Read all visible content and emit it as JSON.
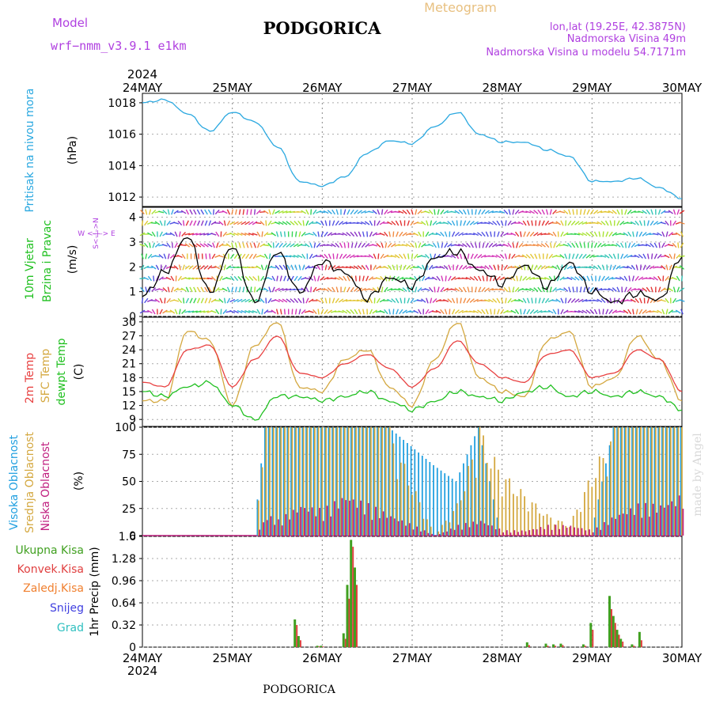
{
  "header": {
    "model_label": "Model",
    "model_name": "wrf−nmm_v3.9.1  e1km",
    "city_title": "PODGORICA",
    "meteogram_label": "Meteogram",
    "lonlat": "lon,lat (19.25E, 42.3875N)",
    "elevation": "Nadmorska Visina 49m",
    "model_elevation": "Nadmorska Visina u modelu 54.7171m",
    "year": "2024",
    "footer_city": "PODGORICA",
    "watermark": "made by Angel"
  },
  "colors": {
    "pressure": "#2aa8e0",
    "temp2m": "#e84040",
    "sfc": "#d4a840",
    "dew": "#20c020",
    "high_cloud": "#22a0e0",
    "mid_cloud": "#d4a840",
    "low_cloud": "#c02080",
    "precip_total": "#40a020",
    "precip_conv": "#e04040",
    "precip_strat": "#f08030",
    "snow": "#4040e0",
    "grad": "#30c0c0",
    "wind_axis_label": "#b040e0"
  },
  "x_axis": {
    "top_labels": [
      "24MAY",
      "25MAY",
      "26MAY",
      "27MAY",
      "28MAY",
      "29MAY",
      "30MAY"
    ],
    "bottom_labels": [
      "24MAY",
      "25MAY",
      "26MAY",
      "27MAY",
      "28MAY",
      "29MAY",
      "30MAY"
    ]
  },
  "panels": {
    "pressure": {
      "ylabel_1": "Pritisak na nivou mora",
      "unit": "(hPa)",
      "ticks": [
        "1012",
        "1014",
        "1016",
        "1018"
      ]
    },
    "wind": {
      "ylabel_1": "10m Vjetar",
      "ylabel_2": "Brzina i Pravac",
      "unit": "(m/s)",
      "compass": "W <–|–> E",
      "compass_ns": "S<–|–>N",
      "ticks": [
        "0",
        "1",
        "2",
        "3",
        "4"
      ]
    },
    "temp": {
      "ylabel_1": "2m Temp",
      "ylabel_2": "SFC Temp",
      "ylabel_3": "dewpt Temp",
      "unit": "(C)",
      "ticks": [
        "9",
        "12",
        "15",
        "18",
        "21",
        "24",
        "27",
        "30"
      ]
    },
    "cloud": {
      "ylabel_1": "Visoka Oblacnost",
      "ylabel_2": "Srednja Oblacnost",
      "ylabel_3": "Niska Oblacnost",
      "unit": "(%)",
      "ticks": [
        "0",
        "25",
        "50",
        "75",
        "100"
      ]
    },
    "precip": {
      "ylabel_1": "1hr Precip (mm)",
      "ticks": [
        "0",
        "0.32",
        "0.64",
        "0.96",
        "1.28",
        "1.6"
      ],
      "legend": [
        "Ukupna Kisa",
        "Konvek.Kisa",
        "Zaledj.Kisa",
        "Snijeg",
        "Grad"
      ]
    }
  },
  "chart_data": [
    {
      "type": "line",
      "title": "Pritisak na nivou mora",
      "ylabel": "hPa",
      "ylim": [
        1011.4,
        1018.6
      ],
      "x": [
        0,
        6,
        12,
        18,
        24,
        30,
        36,
        42,
        48,
        54,
        60,
        66,
        72,
        78,
        84,
        90,
        96,
        102,
        108,
        114,
        120,
        126,
        132,
        138,
        144
      ],
      "series": [
        {
          "name": "Pritisak na nivou mora",
          "values": [
            1018.0,
            1018.2,
            1017.3,
            1016.2,
            1017.4,
            1016.8,
            1015.2,
            1013.0,
            1012.7,
            1013.3,
            1014.8,
            1015.6,
            1015.4,
            1016.5,
            1017.4,
            1016.0,
            1015.5,
            1015.5,
            1015.0,
            1014.6,
            1013.0,
            1013.0,
            1013.2,
            1012.6,
            1011.9
          ]
        }
      ]
    },
    {
      "type": "line",
      "title": "10m Vjetar Brzina i Pravac",
      "ylabel": "m/s",
      "ylim": [
        0,
        4.4
      ],
      "x": [
        0,
        6,
        12,
        18,
        24,
        30,
        36,
        42,
        48,
        54,
        60,
        66,
        72,
        78,
        84,
        90,
        96,
        102,
        108,
        114,
        120,
        126,
        132,
        138,
        144
      ],
      "series": [
        {
          "name": "10m Vjetar",
          "values": [
            0.8,
            1.8,
            3.2,
            1.0,
            2.8,
            0.6,
            2.6,
            1.0,
            2.2,
            1.8,
            0.7,
            1.6,
            1.2,
            2.4,
            2.6,
            1.9,
            1.3,
            2.1,
            1.2,
            2.2,
            1.0,
            0.6,
            0.9,
            0.7,
            2.4
          ]
        }
      ]
    },
    {
      "type": "line",
      "title": "2m Temp / SFC Temp / dewpt Temp",
      "ylabel": "C",
      "ylim": [
        7.5,
        31
      ],
      "x": [
        0,
        6,
        12,
        18,
        24,
        30,
        36,
        42,
        48,
        54,
        60,
        66,
        72,
        78,
        84,
        90,
        96,
        102,
        108,
        114,
        120,
        126,
        132,
        138,
        144
      ],
      "series": [
        {
          "name": "2m Temp",
          "values": [
            17,
            16,
            24,
            25,
            16,
            22,
            27,
            19,
            18,
            21,
            23,
            20,
            16,
            20,
            26,
            21,
            18,
            17,
            23,
            24,
            18,
            19,
            24,
            22,
            15
          ]
        },
        {
          "name": "SFC Temp",
          "values": [
            13,
            13,
            28,
            26,
            12,
            25,
            30,
            16,
            15,
            22,
            24,
            16,
            12,
            22,
            30,
            18,
            15,
            14,
            26,
            28,
            16,
            18,
            27,
            22,
            13
          ]
        },
        {
          "name": "dewpt Temp",
          "values": [
            15,
            14,
            16,
            17,
            12,
            9,
            14,
            14,
            13,
            14,
            15,
            13,
            11,
            13,
            15,
            14,
            13,
            15,
            16,
            14,
            15,
            14,
            15,
            14,
            11
          ]
        }
      ]
    },
    {
      "type": "bar",
      "title": "Oblacnost",
      "ylabel": "%",
      "ylim": [
        0,
        100
      ],
      "x": [
        0,
        30,
        33,
        36,
        42,
        48,
        54,
        60,
        66,
        78,
        84,
        90,
        96,
        102,
        108,
        114,
        120,
        126,
        132,
        138,
        144
      ],
      "series": [
        {
          "name": "Visoka Oblacnost",
          "values": [
            0,
            0,
            100,
            100,
            100,
            100,
            100,
            100,
            100,
            65,
            50,
            100,
            0,
            0,
            0,
            0,
            0,
            100,
            100,
            100,
            100
          ]
        },
        {
          "name": "Srednja Oblacnost",
          "values": [
            0,
            0,
            100,
            100,
            100,
            100,
            100,
            100,
            100,
            0,
            30,
            100,
            60,
            40,
            20,
            10,
            60,
            100,
            100,
            100,
            100
          ]
        },
        {
          "name": "Niska Oblacnost",
          "values": [
            0,
            0,
            20,
            15,
            30,
            25,
            40,
            30,
            20,
            0,
            10,
            15,
            5,
            5,
            10,
            10,
            5,
            20,
            30,
            30,
            40
          ]
        }
      ]
    },
    {
      "type": "bar",
      "title": "1hr Precip",
      "ylabel": "mm",
      "ylim": [
        0,
        1.6
      ],
      "x": [
        41,
        42,
        47,
        48,
        54,
        55,
        56,
        57,
        103,
        108,
        110,
        112,
        118,
        120,
        125,
        126,
        127,
        128,
        131,
        133
      ],
      "series": [
        {
          "name": "Ukupna Kisa",
          "values": [
            0.4,
            0.16,
            0.02,
            0.02,
            0.2,
            0.9,
            1.55,
            1.15,
            0.07,
            0.05,
            0.04,
            0.05,
            0.04,
            0.35,
            0.74,
            0.45,
            0.25,
            0.12,
            0.04,
            0.22
          ]
        },
        {
          "name": "Konvek.Kisa",
          "values": [
            0.32,
            0.1,
            0.01,
            0.01,
            0.12,
            0.7,
            1.45,
            0.9,
            0.03,
            0.02,
            0.02,
            0.03,
            0.02,
            0.25,
            0.55,
            0.35,
            0.18,
            0.08,
            0.02,
            0.1
          ]
        }
      ]
    }
  ]
}
